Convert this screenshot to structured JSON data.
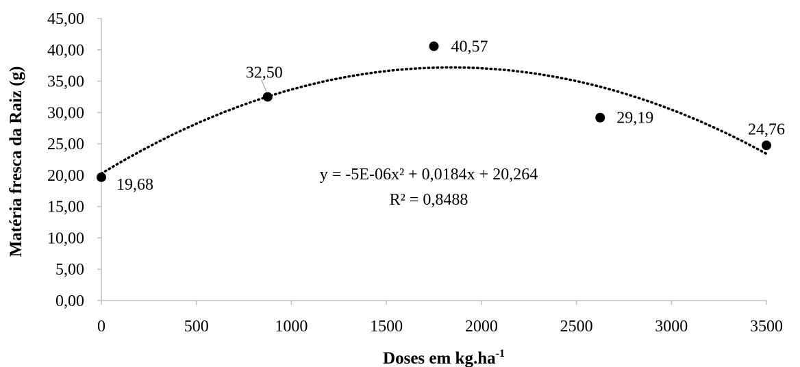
{
  "chart_data": {
    "type": "scatter",
    "xlabel": "Doses em kg.ha",
    "xlabel_sup": "-1",
    "ylabel": "Matéria fresca da Raiz (g)",
    "xlim": [
      0,
      3500
    ],
    "ylim": [
      0,
      45
    ],
    "x_ticks": [
      "0",
      "500",
      "1000",
      "1500",
      "2000",
      "2500",
      "3000",
      "3500"
    ],
    "y_ticks": [
      "0,00",
      "5,00",
      "10,00",
      "15,00",
      "20,00",
      "25,00",
      "30,00",
      "35,00",
      "40,00",
      "45,00"
    ],
    "grid": false,
    "points": [
      {
        "x": 0,
        "y": 19.68,
        "label": "19,68"
      },
      {
        "x": 875,
        "y": 32.5,
        "label": "32,50"
      },
      {
        "x": 1750,
        "y": 40.57,
        "label": "40,57"
      },
      {
        "x": 2625,
        "y": 29.19,
        "label": "29,19"
      },
      {
        "x": 3500,
        "y": 24.76,
        "label": "24,76"
      }
    ],
    "trendline": {
      "type": "polynomial",
      "coefficients": {
        "a": -5e-06,
        "b": 0.0184,
        "c": 20.264
      },
      "style": "dotted",
      "equation": "y = -5E-06x² + 0,0184x + 20,264",
      "r2": "R² = 0,8488"
    },
    "colors": {
      "marker": "#000000",
      "trendline": "#000000",
      "axis": "#bfbfbf"
    }
  }
}
